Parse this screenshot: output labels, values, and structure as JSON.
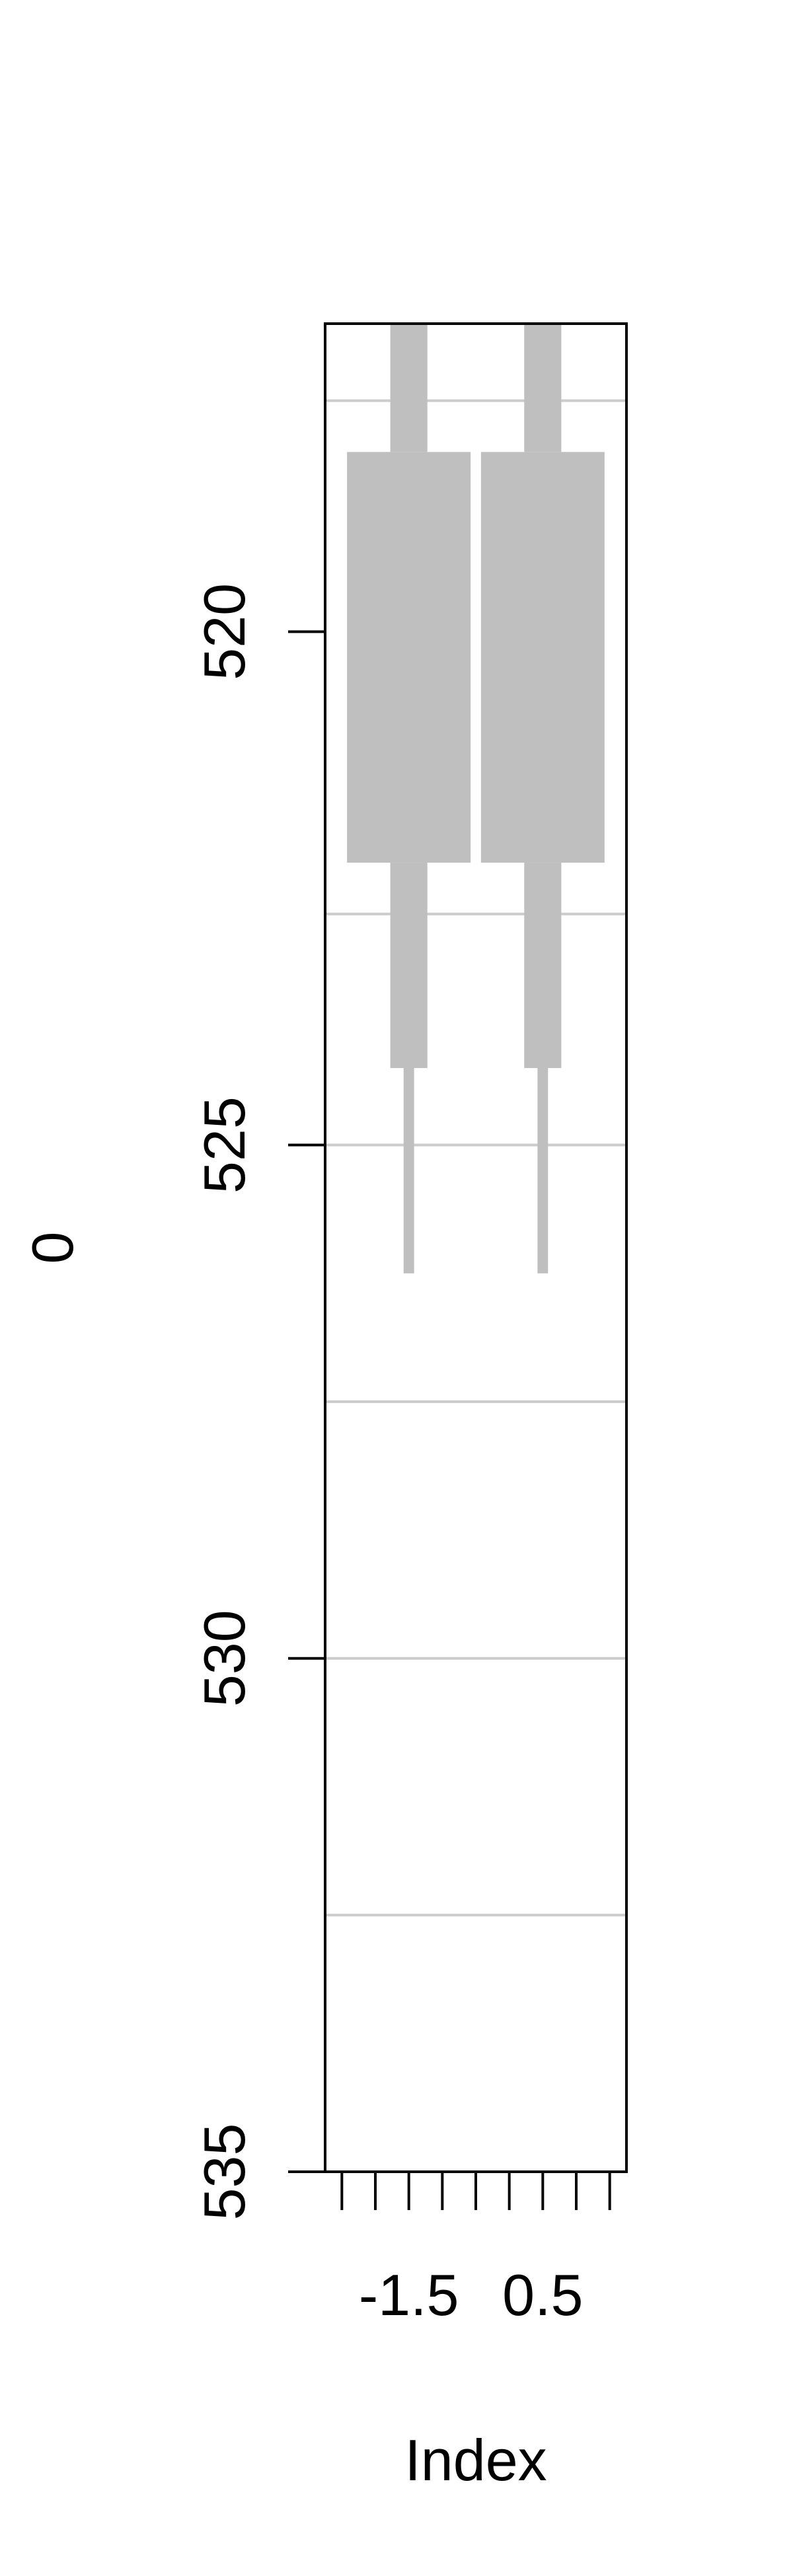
{
  "chart_data": {
    "type": "boxplot",
    "title": "",
    "xlabel": "Index",
    "ylabel": "0",
    "y_axis_reversed": true,
    "ylim": [
      535,
      517
    ],
    "xlim": [
      -2.75,
      1.75
    ],
    "y_ticks": [
      520,
      525,
      530,
      535
    ],
    "x_tick_positions": [
      -2.5,
      -2,
      -1.5,
      -1,
      -0.5,
      0,
      0.5,
      1,
      1.5
    ],
    "x_tick_labels": [
      {
        "value": -1.5,
        "label": "-1.5"
      },
      {
        "value": 0.5,
        "label": "0.5"
      }
    ],
    "horizontal_grid": [
      517.75,
      522.75,
      525,
      527.5,
      530,
      532.5
    ],
    "grid": true,
    "box_color": "#bfbfbf",
    "grid_color": "#cccccc",
    "boxes": [
      {
        "x": -1.5,
        "outer_low": 517,
        "box_low": 518.25,
        "box_high": 522.25,
        "whisker_high": 524.25,
        "extreme_high": 526.25
      },
      {
        "x": 0.5,
        "outer_low": 517,
        "box_low": 518.25,
        "box_high": 522.25,
        "whisker_high": 524.25,
        "extreme_high": 526.25
      }
    ]
  }
}
